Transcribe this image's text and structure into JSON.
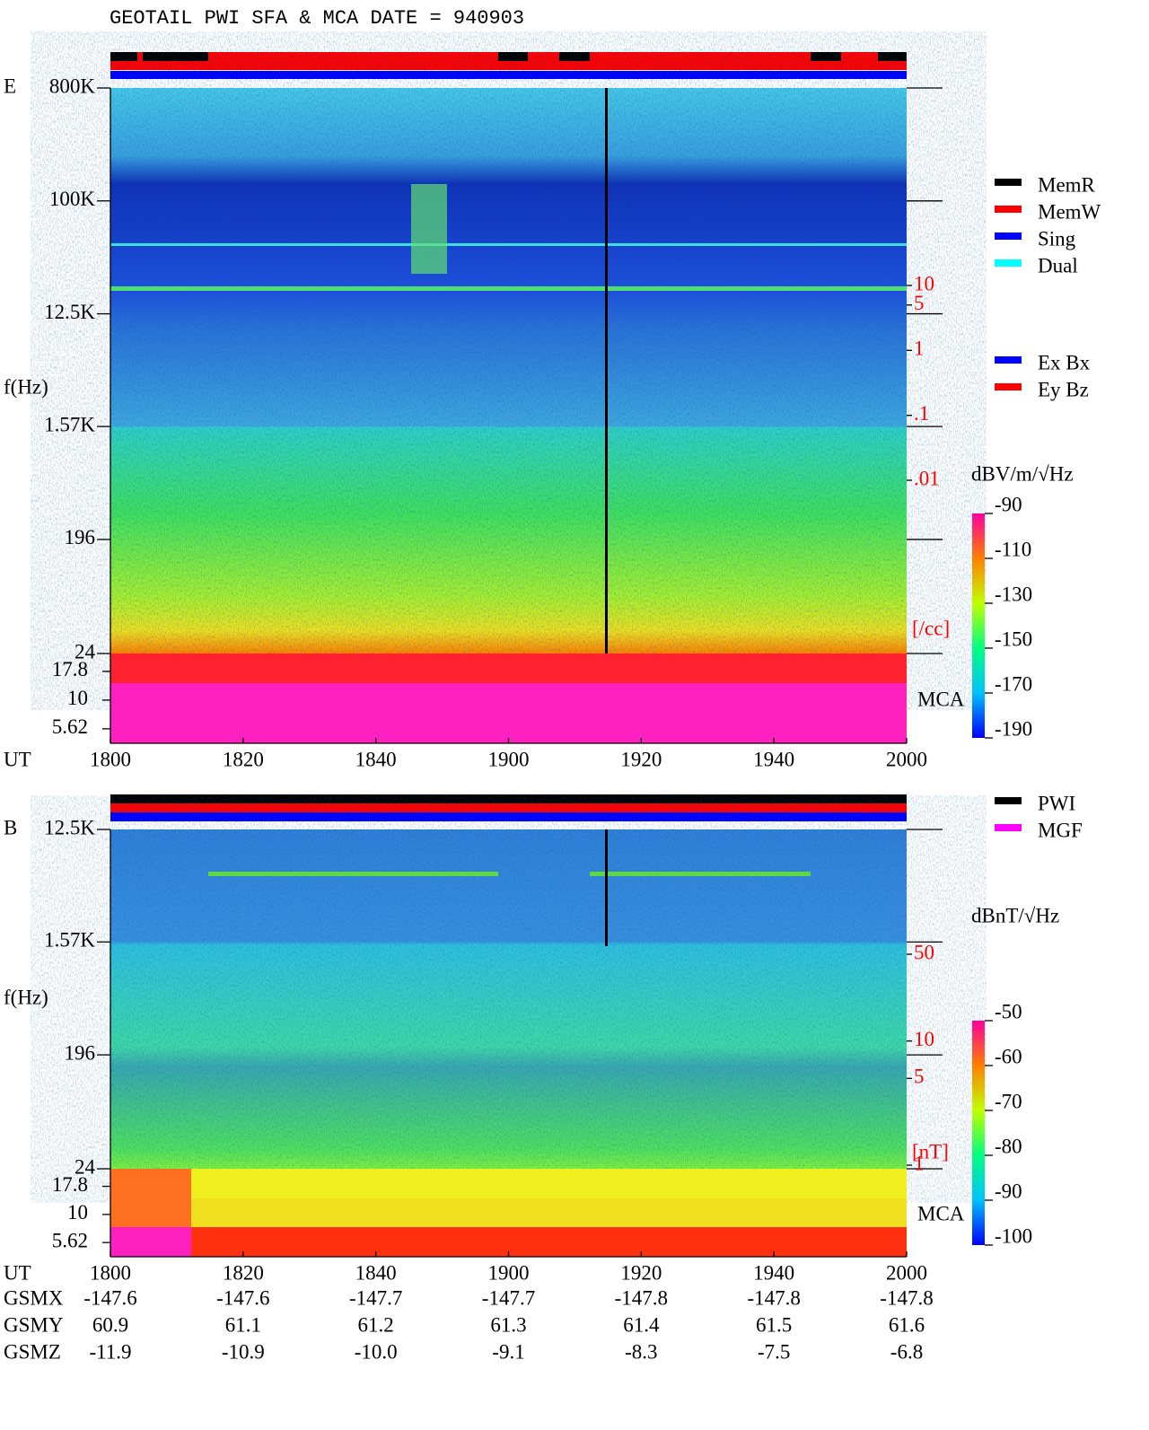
{
  "header": {
    "title": "GEOTAIL  PWI SFA & MCA   DATE = 940903"
  },
  "chart_data": [
    {
      "type": "spectrogram",
      "panel_label": "E",
      "y_label": "f(Hz)",
      "x_label": "UT",
      "log_y": true,
      "ylim": [
        24,
        800000
      ],
      "yticks": [
        {
          "value": 800000,
          "label": "800K"
        },
        {
          "value": 100000,
          "label": "100K"
        },
        {
          "value": 12500,
          "label": "12.5K"
        },
        {
          "value": 1570,
          "label": "1.57K"
        },
        196,
        24
      ],
      "mca_label": "MCA",
      "mca_ylim": [
        4.2,
        25.5
      ],
      "mca_yticks": [
        17.8,
        10,
        5.62
      ],
      "xlim": [
        0,
        120
      ],
      "xticks": [
        {
          "value": 0,
          "label": "1800"
        },
        {
          "value": 20,
          "label": "1820"
        },
        {
          "value": 40,
          "label": "1840"
        },
        {
          "value": 60,
          "label": "1900"
        },
        {
          "value": 80,
          "label": "1920"
        },
        {
          "value": 100,
          "label": "1940"
        },
        {
          "value": 120,
          "label": "2000"
        }
      ],
      "density_lim": [
        0.01,
        10
      ],
      "density_ticks": [
        10,
        5,
        1,
        {
          "value": 0.1,
          "label": ".1"
        },
        {
          "value": 0.01,
          "label": ".01"
        }
      ],
      "density_unit": "[/cc]",
      "colorbar": {
        "label": "dBV/m/√Hz",
        "clim": [
          -190,
          -90
        ],
        "ticks": [
          -90,
          -110,
          -130,
          -150,
          -170,
          -190
        ]
      },
      "legend": [
        {
          "name": "MemR",
          "color": "#000000"
        },
        {
          "name": "MemW",
          "color": "#ff0000"
        },
        {
          "name": "Sing",
          "color": "#0000ff"
        },
        {
          "name": "Dual",
          "color": "#00ffff"
        }
      ],
      "legend2": [
        {
          "name": "Ex Bx",
          "color": "#0000ff"
        },
        {
          "name": "Ey Bz",
          "color": "#ff0000"
        }
      ]
    },
    {
      "type": "spectrogram",
      "panel_label": "B",
      "y_label": "f(Hz)",
      "x_label": "UT",
      "log_y": true,
      "ylim": [
        24,
        12500
      ],
      "yticks": [
        {
          "value": 12500,
          "label": "12.5K"
        },
        {
          "value": 1570,
          "label": "1.57K"
        },
        196,
        24
      ],
      "mca_label": "MCA",
      "mca_ylim": [
        4.2,
        25.5
      ],
      "mca_yticks": [
        17.8,
        10,
        5.62
      ],
      "xlim": [
        0,
        120
      ],
      "xticks": [
        {
          "value": 0,
          "label": "1800"
        },
        {
          "value": 20,
          "label": "1820"
        },
        {
          "value": 40,
          "label": "1840"
        },
        {
          "value": 60,
          "label": "1900"
        },
        {
          "value": 80,
          "label": "1920"
        },
        {
          "value": 100,
          "label": "1940"
        },
        {
          "value": 120,
          "label": "2000"
        }
      ],
      "density_lim": [
        1,
        50
      ],
      "density_ticks": [
        50,
        10,
        5,
        1
      ],
      "density_unit": "[nT]",
      "colorbar": {
        "label": "dBnT/√Hz",
        "clim": [
          -100,
          -50
        ],
        "ticks": [
          -50,
          -60,
          -70,
          -80,
          -90,
          -100
        ]
      },
      "legend": [
        {
          "name": "PWI",
          "color": "#000000"
        },
        {
          "name": "MGF",
          "color": "#ff00ff"
        }
      ]
    }
  ],
  "orbit": {
    "rows": [
      {
        "name": "GSMX",
        "values": [
          -147.6,
          -147.6,
          -147.7,
          -147.7,
          -147.8,
          -147.8,
          -147.8
        ]
      },
      {
        "name": "GSMY",
        "values": [
          60.9,
          61.1,
          61.2,
          61.3,
          61.4,
          61.5,
          61.6
        ]
      },
      {
        "name": "GSMZ",
        "values": [
          -11.9,
          -10.9,
          {
            "value": -10,
            "label": "-10.0"
          },
          -9.1,
          -8.3,
          -7.5,
          -6.8
        ]
      }
    ]
  }
}
